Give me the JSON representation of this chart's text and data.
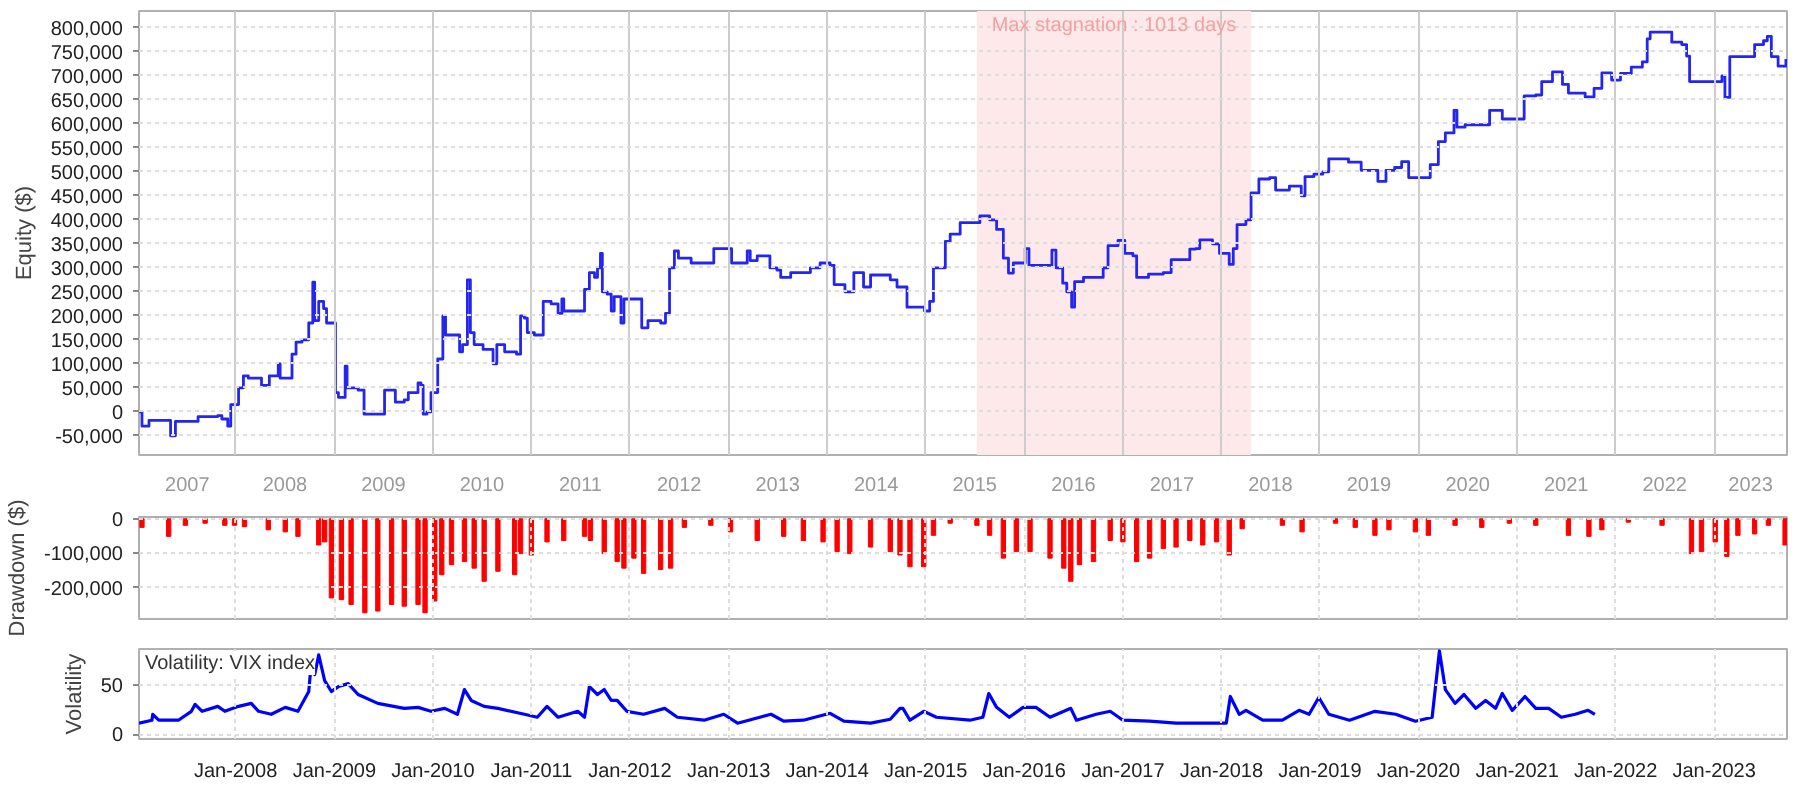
{
  "chart_data": [
    {
      "type": "step",
      "ylabel": "Equity ($)",
      "grid": true,
      "xlim": [
        "2007-01-08",
        "2023-09-28"
      ],
      "xticks": [
        {
          "value": "2007-07-06",
          "label": "2007"
        },
        {
          "value": "2008-01-01",
          "label": null
        },
        {
          "value": "2008-07-02",
          "label": "2008"
        },
        {
          "value": "2009-01-01",
          "label": null
        },
        {
          "value": "2009-07-02",
          "label": "2009"
        },
        {
          "value": "2010-01-01",
          "label": null
        },
        {
          "value": "2010-07-02",
          "label": "2010"
        },
        {
          "value": "2011-01-01",
          "label": null
        },
        {
          "value": "2011-07-02",
          "label": "2011"
        },
        {
          "value": "2012-01-01",
          "label": null
        },
        {
          "value": "2012-07-02",
          "label": "2012"
        },
        {
          "value": "2013-01-01",
          "label": null
        },
        {
          "value": "2013-07-02",
          "label": "2013"
        },
        {
          "value": "2014-01-01",
          "label": null
        },
        {
          "value": "2014-07-02",
          "label": "2014"
        },
        {
          "value": "2015-01-01",
          "label": null
        },
        {
          "value": "2015-07-02",
          "label": "2015"
        },
        {
          "value": "2016-01-01",
          "label": null
        },
        {
          "value": "2016-07-02",
          "label": "2016"
        },
        {
          "value": "2017-01-01",
          "label": null
        },
        {
          "value": "2017-07-02",
          "label": "2017"
        },
        {
          "value": "2018-01-01",
          "label": null
        },
        {
          "value": "2018-07-02",
          "label": "2018"
        },
        {
          "value": "2019-01-01",
          "label": null
        },
        {
          "value": "2019-07-02",
          "label": "2019"
        },
        {
          "value": "2020-01-01",
          "label": null
        },
        {
          "value": "2020-07-02",
          "label": "2020"
        },
        {
          "value": "2021-01-01",
          "label": null
        },
        {
          "value": "2021-07-02",
          "label": "2021"
        },
        {
          "value": "2022-01-01",
          "label": null
        },
        {
          "value": "2022-07-02",
          "label": "2022"
        },
        {
          "value": "2023-01-01",
          "label": null
        },
        {
          "value": "2023-05-16",
          "label": "2023"
        }
      ],
      "ylim": [
        -90000,
        835000
      ],
      "yticks": [
        {
          "value": -50000,
          "label": "-50,000"
        },
        0,
        {
          "value": 50000,
          "label": "50,000"
        },
        {
          "value": 100000,
          "label": "100,000"
        },
        {
          "value": 150000,
          "label": "150,000"
        },
        {
          "value": 200000,
          "label": "200,000"
        },
        {
          "value": 250000,
          "label": "250,000"
        },
        {
          "value": 300000,
          "label": "300,000"
        },
        {
          "value": 350000,
          "label": "350,000"
        },
        {
          "value": 400000,
          "label": "400,000"
        },
        {
          "value": 450000,
          "label": "450,000"
        },
        {
          "value": 500000,
          "label": "500,000"
        },
        {
          "value": 550000,
          "label": "550,000"
        },
        {
          "value": 600000,
          "label": "600,000"
        },
        {
          "value": 650000,
          "label": "650,000"
        },
        {
          "value": 700000,
          "label": "700,000"
        },
        {
          "value": 750000,
          "label": "750,000"
        },
        {
          "value": 800000,
          "label": "800,000"
        }
      ],
      "bands": [
        {
          "axis": "x",
          "from": "2015-07-10",
          "to": "2018-04-21",
          "label": "Max stagnation : 1013 days",
          "color": "#fde9e9"
        }
      ],
      "series": [
        {
          "color": "#2525f0",
          "x": [
            "2007-01-08",
            "2007-01-19",
            "2007-02-14",
            "2007-04-13",
            "2007-05-05",
            "2007-05-23",
            "2007-08-04",
            "2007-08-15",
            "2007-10-27",
            "2007-11-11",
            "2007-11-29",
            "2007-12-03",
            "2007-12-14",
            "2007-12-28",
            "2008-01-12",
            "2008-01-30",
            "2008-02-17",
            "2008-03-26",
            "2008-04-06",
            "2008-05-05",
            "2008-05-27",
            "2008-06-07",
            "2008-06-14",
            "2008-07-13",
            "2008-07-28",
            "2008-08-12",
            "2008-09-03",
            "2008-09-28",
            "2008-10-13",
            "2008-10-20",
            "2008-11-04",
            "2008-11-22",
            "2008-12-03",
            "2008-12-21",
            "2009-01-05",
            "2009-01-16",
            "2009-02-10",
            "2009-02-17",
            "2009-03-30",
            "2009-04-21",
            "2009-07-03",
            "2009-07-06",
            "2009-08-08",
            "2009-08-15",
            "2009-09-17",
            "2009-10-02",
            "2009-11-07",
            "2009-11-18",
            "2009-11-26",
            "2009-12-10",
            "2009-12-25",
            "2010-01-19",
            "2010-02-07",
            "2010-02-17",
            "2010-03-30",
            "2010-04-10",
            "2010-04-21",
            "2010-05-09",
            "2010-05-20",
            "2010-06-03",
            "2010-07-06",
            "2010-08-12",
            "2010-08-26",
            "2010-09-24",
            "2010-11-07",
            "2010-11-22",
            "2010-12-06",
            "2010-12-17",
            "2011-01-12",
            "2011-02-14",
            "2011-03-15",
            "2011-04-10",
            "2011-04-24",
            "2011-05-01",
            "2011-07-03",
            "2011-07-17",
            "2011-08-04",
            "2011-08-23",
            "2011-09-03",
            "2011-09-14",
            "2011-09-21",
            "2011-10-09",
            "2011-10-24",
            "2011-11-04",
            "2011-11-29",
            "2011-12-10",
            "2012-02-03",
            "2012-02-14",
            "2012-03-08",
            "2012-04-24",
            "2012-05-12",
            "2012-05-27",
            "2012-06-14",
            "2012-06-29",
            "2012-08-15",
            "2012-10-27",
            "2012-11-07",
            "2013-01-05",
            "2013-01-12",
            "2013-02-28",
            "2013-03-11",
            "2013-03-22",
            "2013-04-17",
            "2013-06-03",
            "2013-06-29",
            "2013-07-13",
            "2013-08-19",
            "2013-10-31",
            "2013-12-06",
            "2014-01-12",
            "2014-01-27",
            "2014-03-08",
            "2014-04-02",
            "2014-04-10",
            "2014-05-16",
            "2014-06-11",
            "2014-07-28",
            "2014-08-23",
            "2014-09-17",
            "2014-10-24",
            "2014-12-28",
            "2015-01-16",
            "2015-01-30",
            "2015-03-04",
            "2015-03-15",
            "2015-04-02",
            "2015-05-01",
            "2015-05-09",
            "2015-06-25",
            "2015-07-21",
            "2015-08-26",
            "2015-09-21",
            "2015-10-16",
            "2015-11-04",
            "2015-11-22",
            "2015-12-17",
            "2016-01-05",
            "2016-01-19",
            "2016-03-26",
            "2016-04-13",
            "2016-04-28",
            "2016-05-23",
            "2016-06-07",
            "2016-06-25",
            "2016-07-06",
            "2016-08-08",
            "2016-10-09",
            "2016-10-20",
            "2016-11-07",
            "2016-12-14",
            "2017-01-08",
            "2017-02-07",
            "2017-02-21",
            "2017-04-06",
            "2017-05-31",
            "2017-06-29",
            "2017-08-12",
            "2017-09-06",
            "2017-09-28",
            "2017-10-13",
            "2017-11-29",
            "2017-12-25",
            "2018-01-30",
            "2018-02-14",
            "2018-02-28",
            "2018-04-02",
            "2018-04-21",
            "2018-05-20",
            "2018-06-29",
            "2018-07-21",
            "2018-09-10",
            "2018-10-24",
            "2018-11-07",
            "2018-12-10",
            "2019-01-12",
            "2019-02-03",
            "2019-04-17",
            "2019-06-03",
            "2019-08-04",
            "2019-09-03",
            "2019-10-05",
            "2019-10-31",
            "2019-11-26",
            "2020-01-27",
            "2020-02-14",
            "2020-03-15",
            "2020-04-10",
            "2020-05-12",
            "2020-05-23",
            "2020-06-22",
            "2020-09-06",
            "2020-09-21",
            "2020-11-07",
            "2021-01-08",
            "2021-01-27",
            "2021-03-11",
            "2021-04-02",
            "2021-05-12",
            "2021-06-18",
            "2021-07-10",
            "2021-09-10",
            "2021-10-13",
            "2021-11-11",
            "2021-12-17",
            "2022-01-19",
            "2022-02-28",
            "2022-04-10",
            "2022-04-28",
            "2022-05-09",
            "2022-07-17",
            "2022-07-28",
            "2022-09-03",
            "2022-09-21",
            "2022-10-02",
            "2023-01-05",
            "2023-01-30",
            "2023-02-10",
            "2023-02-28",
            "2023-05-20",
            "2023-05-31",
            "2023-07-03",
            "2023-07-17",
            "2023-08-01",
            "2023-08-26",
            "2023-09-14",
            "2023-09-24"
          ],
          "values": [
            0,
            -30000,
            -18000,
            -18000,
            -50000,
            -20000,
            -20000,
            -10000,
            -8000,
            -15000,
            -15000,
            -30000,
            15000,
            15000,
            50000,
            75000,
            70000,
            70000,
            55000,
            75000,
            75000,
            100000,
            70000,
            70000,
            120000,
            145000,
            150000,
            185000,
            270000,
            190000,
            230000,
            215000,
            185000,
            185000,
            40000,
            30000,
            95000,
            50000,
            45000,
            -5000,
            -5000,
            45000,
            45000,
            20000,
            25000,
            40000,
            60000,
            55000,
            -5000,
            0,
            40000,
            110000,
            200000,
            160000,
            160000,
            125000,
            140000,
            275000,
            165000,
            140000,
            130000,
            100000,
            140000,
            125000,
            120000,
            200000,
            195000,
            165000,
            160000,
            230000,
            225000,
            205000,
            235000,
            210000,
            210000,
            255000,
            290000,
            280000,
            300000,
            330000,
            250000,
            245000,
            210000,
            240000,
            185000,
            235000,
            235000,
            175000,
            190000,
            185000,
            205000,
            300000,
            335000,
            320000,
            310000,
            310000,
            340000,
            340000,
            310000,
            310000,
            335000,
            315000,
            325000,
            300000,
            295000,
            280000,
            290000,
            300000,
            310000,
            305000,
            265000,
            250000,
            250000,
            290000,
            260000,
            285000,
            285000,
            275000,
            260000,
            218000,
            210000,
            230000,
            300000,
            300000,
            355000,
            370000,
            370000,
            394000,
            394000,
            408000,
            400000,
            380000,
            320000,
            289000,
            310000,
            310000,
            340000,
            305000,
            305000,
            337000,
            300000,
            268000,
            250000,
            218000,
            271000,
            280000,
            280000,
            300000,
            346000,
            357000,
            330000,
            325000,
            280000,
            287000,
            290000,
            317000,
            317000,
            339000,
            340000,
            358000,
            350000,
            330000,
            307000,
            340000,
            390000,
            400000,
            456000,
            485000,
            488000,
            462000,
            470000,
            450000,
            490000,
            495000,
            500000,
            527000,
            520000,
            503000,
            480000,
            503000,
            509000,
            521000,
            488000,
            488000,
            515000,
            563000,
            581000,
            628000,
            593000,
            598000,
            598000,
            628000,
            610000,
            610000,
            658000,
            660000,
            688000,
            708000,
            682000,
            664000,
            656000,
            674000,
            706000,
            691000,
            705000,
            718000,
            729000,
            777000,
            791000,
            791000,
            770000,
            765000,
            741000,
            688000,
            688000,
            700000,
            655000,
            740000,
            740000,
            765000,
            773000,
            782000,
            740000,
            720000,
            720000,
            735000
          ]
        }
      ]
    },
    {
      "type": "bar",
      "ylabel": "Drawdown ($)",
      "grid": true,
      "tick_labels": "y",
      "xlim": [
        "2007-01-08",
        "2023-09-28"
      ],
      "xticks": [
        {
          "value": "2008-01-01",
          "label": null
        },
        {
          "value": "2009-01-01",
          "label": null
        },
        {
          "value": "2010-01-01",
          "label": null
        },
        {
          "value": "2011-01-01",
          "label": null
        },
        {
          "value": "2012-01-01",
          "label": null
        },
        {
          "value": "2013-01-01",
          "label": null
        },
        {
          "value": "2014-01-01",
          "label": null
        },
        {
          "value": "2015-01-01",
          "label": null
        },
        {
          "value": "2016-01-01",
          "label": null
        },
        {
          "value": "2017-01-01",
          "label": null
        },
        {
          "value": "2018-01-01",
          "label": null
        },
        {
          "value": "2019-01-01",
          "label": null
        },
        {
          "value": "2020-01-01",
          "label": null
        },
        {
          "value": "2021-01-01",
          "label": null
        },
        {
          "value": "2022-01-01",
          "label": null
        },
        {
          "value": "2023-01-01",
          "label": null
        }
      ],
      "ylim": [
        -290000,
        5000
      ],
      "yticks": [
        {
          "value": -200000,
          "label": "-200,000"
        },
        {
          "value": -100000,
          "label": "-100,000"
        },
        0
      ],
      "series": [
        {
          "color": "#ff0000",
          "x": [
            "2007-01-19",
            "2007-04-28",
            "2007-06-29",
            "2007-09-10",
            "2007-11-22",
            "2007-12-28",
            "2008-02-03",
            "2008-05-01",
            "2008-07-03",
            "2008-08-19",
            "2008-11-04",
            "2008-11-26",
            "2008-12-21",
            "2009-01-27",
            "2009-03-04",
            "2009-04-24",
            "2009-06-11",
            "2009-08-01",
            "2009-09-17",
            "2009-11-07",
            "2009-12-03",
            "2010-01-08",
            "2010-02-03",
            "2010-03-11",
            "2010-04-28",
            "2010-06-03",
            "2010-07-10",
            "2010-08-30",
            "2010-10-31",
            "2010-11-22",
            "2011-01-01",
            "2011-02-28",
            "2011-05-01",
            "2011-07-17",
            "2011-08-08",
            "2011-09-28",
            "2011-11-15",
            "2011-12-10",
            "2012-01-16",
            "2012-02-21",
            "2012-04-24",
            "2012-05-31",
            "2012-07-21",
            "2012-10-27",
            "2013-01-08",
            "2013-04-17",
            "2013-07-24",
            "2013-10-05",
            "2013-12-17",
            "2014-02-07",
            "2014-03-26",
            "2014-06-11",
            "2014-08-23",
            "2014-09-28",
            "2014-11-04",
            "2014-12-25",
            "2015-01-30",
            "2015-04-02",
            "2015-07-10",
            "2015-08-26",
            "2015-10-16",
            "2015-12-03",
            "2016-01-23",
            "2016-04-06",
            "2016-05-27",
            "2016-06-22",
            "2016-07-24",
            "2016-09-14",
            "2016-11-15",
            "2017-01-01",
            "2017-02-21",
            "2017-04-10",
            "2017-05-31",
            "2017-07-17",
            "2017-09-06",
            "2017-10-24",
            "2017-12-14",
            "2018-01-30",
            "2018-03-19",
            "2018-08-15",
            "2018-10-27",
            "2019-02-28",
            "2019-05-12",
            "2019-07-24",
            "2019-09-14",
            "2019-12-21",
            "2020-02-07",
            "2020-05-16",
            "2020-08-23",
            "2020-12-03",
            "2021-03-11",
            "2021-07-10",
            "2021-09-24",
            "2021-11-11",
            "2022-02-17",
            "2022-06-22",
            "2022-10-09",
            "2022-11-15",
            "2023-01-05",
            "2023-02-17",
            "2023-03-30",
            "2023-05-31",
            "2023-07-21",
            "2023-09-21"
          ],
          "values": [
            -25000,
            -51000,
            -19000,
            -13000,
            -19000,
            -19000,
            -23000,
            -32000,
            -38000,
            -51000,
            -76000,
            -67000,
            -229000,
            -234000,
            -248000,
            -272000,
            -267000,
            -248000,
            -253000,
            -248000,
            -272000,
            -238000,
            -162000,
            -133000,
            -124000,
            -143000,
            -181000,
            -152000,
            -162000,
            -101000,
            -105000,
            -67000,
            -63000,
            -51000,
            -63000,
            -101000,
            -124000,
            -143000,
            -114000,
            -158000,
            -147000,
            -143000,
            -25000,
            -19000,
            -38000,
            -63000,
            -51000,
            -63000,
            -67000,
            -95000,
            -101000,
            -82000,
            -95000,
            -105000,
            -139000,
            -139000,
            -48000,
            -13000,
            -19000,
            -48000,
            -114000,
            -95000,
            -95000,
            -114000,
            -143000,
            -181000,
            -133000,
            -124000,
            -63000,
            -67000,
            -124000,
            -114000,
            -86000,
            -82000,
            -63000,
            -76000,
            -67000,
            -105000,
            -29000,
            -19000,
            -38000,
            -13000,
            -25000,
            -48000,
            -32000,
            -38000,
            -48000,
            -19000,
            -25000,
            -13000,
            -19000,
            -48000,
            -51000,
            -32000,
            -10000,
            -19000,
            -101000,
            -95000,
            -67000,
            -109000,
            -48000,
            -44000,
            -19000,
            -76000
          ]
        }
      ]
    },
    {
      "type": "line",
      "ylabel": "Volatility",
      "grid": true,
      "annotations": [
        "Volatility: VIX index"
      ],
      "xlim": [
        "2007-01-08",
        "2023-09-28"
      ],
      "xticks": [
        {
          "value": "2008-01-01",
          "label": "Jan-2008"
        },
        {
          "value": "2009-01-01",
          "label": "Jan-2009"
        },
        {
          "value": "2010-01-01",
          "label": "Jan-2010"
        },
        {
          "value": "2011-01-01",
          "label": "Jan-2011"
        },
        {
          "value": "2012-01-01",
          "label": "Jan-2012"
        },
        {
          "value": "2013-01-01",
          "label": "Jan-2013"
        },
        {
          "value": "2014-01-01",
          "label": "Jan-2014"
        },
        {
          "value": "2015-01-01",
          "label": "Jan-2015"
        },
        {
          "value": "2016-01-01",
          "label": "Jan-2016"
        },
        {
          "value": "2017-01-01",
          "label": "Jan-2017"
        },
        {
          "value": "2018-01-01",
          "label": "Jan-2018"
        },
        {
          "value": "2019-01-01",
          "label": "Jan-2019"
        },
        {
          "value": "2020-01-01",
          "label": "Jan-2020"
        },
        {
          "value": "2021-01-01",
          "label": "Jan-2021"
        },
        {
          "value": "2022-01-01",
          "label": "Jan-2022"
        },
        {
          "value": "2023-01-01",
          "label": "Jan-2023"
        }
      ],
      "ylim": [
        -5,
        86
      ],
      "yticks": [
        0,
        50
      ],
      "series": [
        {
          "color": "#0000ff",
          "x": [
            "2007-01-08",
            "2007-02-25",
            "2007-02-28",
            "2007-03-22",
            "2007-06-03",
            "2007-07-21",
            "2007-08-04",
            "2007-08-30",
            "2007-10-27",
            "2007-11-22",
            "2008-01-12",
            "2008-02-28",
            "2008-03-26",
            "2008-05-12",
            "2008-07-03",
            "2008-08-19",
            "2008-09-28",
            "2008-10-09",
            "2008-10-20",
            "2008-11-04",
            "2008-11-26",
            "2008-12-21",
            "2009-01-16",
            "2009-02-21",
            "2009-03-30",
            "2009-06-11",
            "2009-09-17",
            "2009-11-07",
            "2009-12-25",
            "2010-02-14",
            "2010-04-02",
            "2010-04-28",
            "2010-05-23",
            "2010-07-10",
            "2010-08-30",
            "2010-12-06",
            "2011-01-23",
            "2011-02-28",
            "2011-04-10",
            "2011-06-22",
            "2011-07-17",
            "2011-08-04",
            "2011-09-03",
            "2011-09-28",
            "2011-10-24",
            "2011-11-15",
            "2011-12-21",
            "2012-02-21",
            "2012-05-09",
            "2012-06-25",
            "2012-10-02",
            "2012-12-14",
            "2013-02-03",
            "2013-06-07",
            "2013-07-24",
            "2013-10-05",
            "2014-01-12",
            "2014-03-04",
            "2014-06-11",
            "2014-08-23",
            "2014-09-28",
            "2014-10-09",
            "2014-11-04",
            "2014-12-25",
            "2015-02-10",
            "2015-06-14",
            "2015-08-01",
            "2015-08-23",
            "2015-09-21",
            "2015-11-07",
            "2015-12-28",
            "2016-02-14",
            "2016-04-06",
            "2016-06-22",
            "2016-07-13",
            "2016-09-24",
            "2016-11-15",
            "2017-01-01",
            "2017-04-10",
            "2017-07-17",
            "2017-10-24",
            "2018-01-19",
            "2018-02-03",
            "2018-03-08",
            "2018-04-02",
            "2018-06-03",
            "2018-08-15",
            "2018-10-16",
            "2018-11-22",
            "2018-12-28",
            "2019-02-03",
            "2019-04-21",
            "2019-07-24",
            "2019-10-09",
            "2019-12-21",
            "2020-02-21",
            "2020-03-19",
            "2020-04-10",
            "2020-05-16",
            "2020-06-18",
            "2020-08-01",
            "2020-09-06",
            "2020-10-13",
            "2020-11-07",
            "2020-12-14",
            "2021-01-30",
            "2021-03-11",
            "2021-04-28",
            "2021-06-14",
            "2021-08-04",
            "2021-09-21",
            "2021-10-16"
          ],
          "values": [
            11,
            14,
            20,
            14,
            14,
            23,
            30,
            23,
            28,
            23,
            28,
            31,
            23,
            20,
            27,
            23,
            43,
            77,
            60,
            80,
            54,
            43,
            48,
            51,
            40,
            31,
            26,
            27,
            23,
            26,
            20,
            45,
            34,
            28,
            26,
            20,
            17,
            28,
            17,
            23,
            17,
            48,
            40,
            45,
            34,
            34,
            23,
            20,
            26,
            17,
            14,
            20,
            11,
            20,
            13,
            14,
            21,
            13,
            11,
            15,
            26,
            26,
            14,
            23,
            17,
            14,
            17,
            41,
            27,
            17,
            27,
            27,
            17,
            26,
            14,
            20,
            23,
            14,
            13,
            11,
            11,
            11,
            38,
            20,
            24,
            14,
            14,
            24,
            20,
            37,
            20,
            14,
            23,
            20,
            13,
            17,
            84,
            45,
            31,
            40,
            26,
            34,
            26,
            41,
            24,
            38,
            26,
            26,
            17,
            20,
            24,
            20
          ]
        }
      ]
    }
  ]
}
